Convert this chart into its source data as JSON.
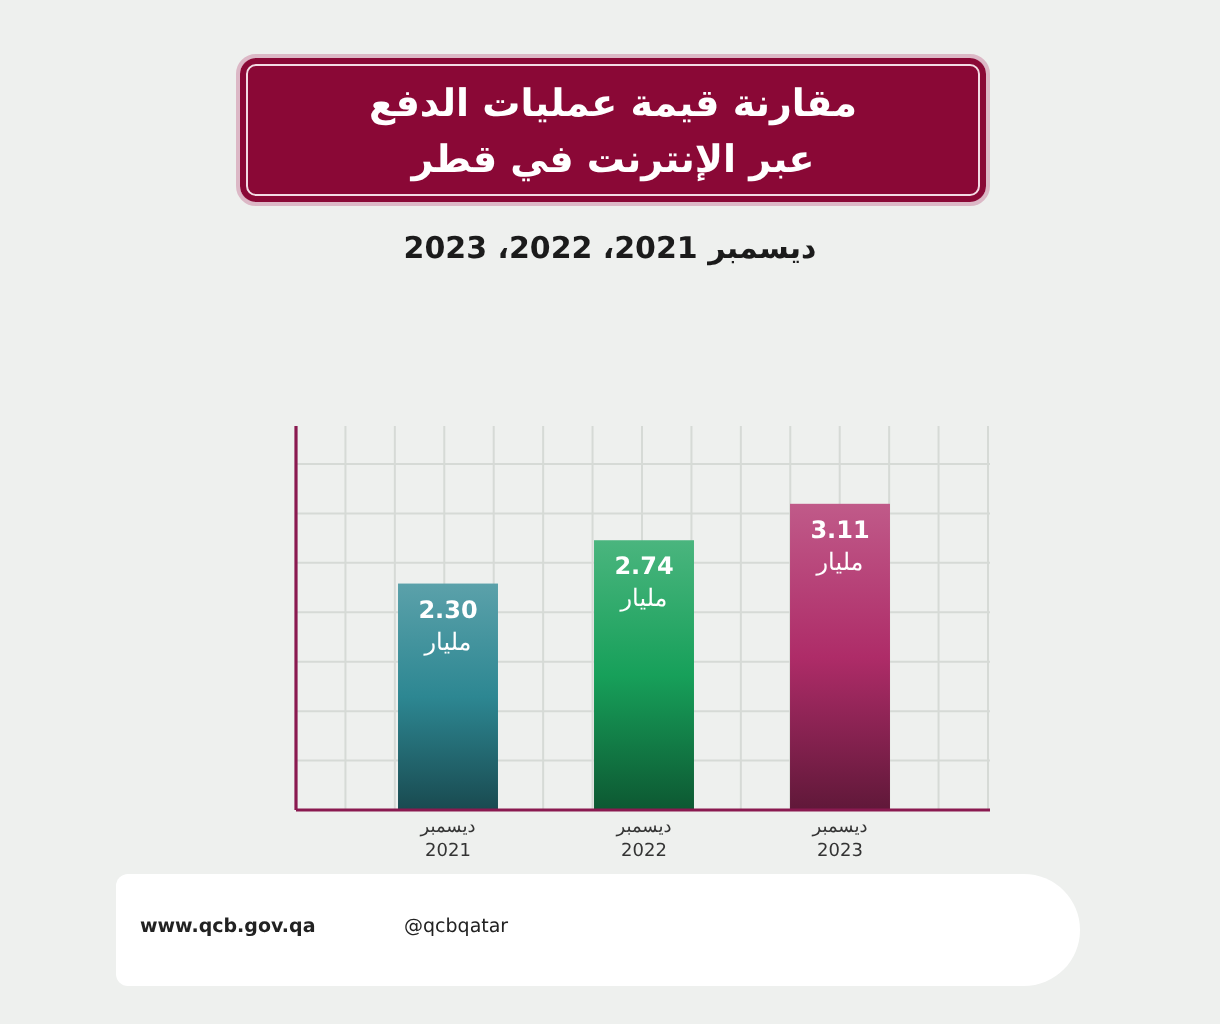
{
  "chart_data": {
    "type": "bar",
    "title": "مقارنة قيمة عمليات الدفع\nعبر الإنترنت في قطر",
    "subtitle": "ديسمبر 2021، 2022، 2023",
    "categories": [
      "ديسمبر 2021",
      "ديسمبر 2022",
      "ديسمبر 2023"
    ],
    "values": [
      2.3,
      2.74,
      3.11
    ],
    "value_labels": [
      "2.30 مليار",
      "2.74 مليار",
      "3.11 مليار"
    ],
    "colors": [
      "#2d8792",
      "#17a05a",
      "#ae2c68"
    ],
    "grid": true,
    "tick_labels": "x",
    "annotations": [
      "www.qcb.gov.qa",
      "@qcbqatar"
    ]
  }
}
